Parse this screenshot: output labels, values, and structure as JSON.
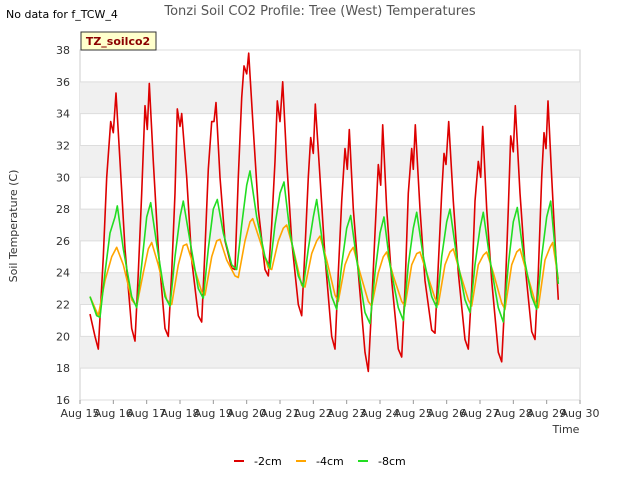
{
  "chart_data": {
    "type": "line",
    "title": "Tonzi Soil CO2 Profile: Tree (West) Temperatures",
    "no_data_note": "No data for f_TCW_4",
    "badge": "TZ_soilco2",
    "xlabel": "Time",
    "ylabel": "Soil Temperature (C)",
    "ylim": [
      16,
      38
    ],
    "yticks": [
      16,
      18,
      20,
      22,
      24,
      26,
      28,
      30,
      32,
      34,
      36,
      38
    ],
    "xlim": [
      15,
      30
    ],
    "xticks": [
      {
        "v": 15,
        "label": "Aug 15"
      },
      {
        "v": 16,
        "label": "Aug 16"
      },
      {
        "v": 17,
        "label": "Aug 17"
      },
      {
        "v": 18,
        "label": "Aug 18"
      },
      {
        "v": 19,
        "label": "Aug 19"
      },
      {
        "v": 20,
        "label": "Aug 20"
      },
      {
        "v": 21,
        "label": "Aug 21"
      },
      {
        "v": 22,
        "label": "Aug 22"
      },
      {
        "v": 23,
        "label": "Aug 23"
      },
      {
        "v": 24,
        "label": "Aug 24"
      },
      {
        "v": 25,
        "label": "Aug 25"
      },
      {
        "v": 26,
        "label": "Aug 26"
      },
      {
        "v": 27,
        "label": "Aug 27"
      },
      {
        "v": 28,
        "label": "Aug 28"
      },
      {
        "v": 29,
        "label": "Aug 29"
      },
      {
        "v": 30,
        "label": "Aug 30"
      }
    ],
    "grid": true,
    "legend_position": "bottom",
    "series": [
      {
        "name": "-2cm",
        "color": "#dd0000",
        "points": [
          [
            15.3,
            21.4
          ],
          [
            15.45,
            20.0
          ],
          [
            15.55,
            19.2
          ],
          [
            15.7,
            25.0
          ],
          [
            15.8,
            30.0
          ],
          [
            15.92,
            33.5
          ],
          [
            16.0,
            32.8
          ],
          [
            16.08,
            35.3
          ],
          [
            16.2,
            31.0
          ],
          [
            16.35,
            25.5
          ],
          [
            16.55,
            20.5
          ],
          [
            16.65,
            19.7
          ],
          [
            16.75,
            24.0
          ],
          [
            16.85,
            29.0
          ],
          [
            16.95,
            34.5
          ],
          [
            17.02,
            33.0
          ],
          [
            17.08,
            35.9
          ],
          [
            17.2,
            31.0
          ],
          [
            17.35,
            25.5
          ],
          [
            17.55,
            20.5
          ],
          [
            17.65,
            20.0
          ],
          [
            17.75,
            24.0
          ],
          [
            17.85,
            29.0
          ],
          [
            17.92,
            34.3
          ],
          [
            18.0,
            33.2
          ],
          [
            18.05,
            34.0
          ],
          [
            18.2,
            30.0
          ],
          [
            18.35,
            24.8
          ],
          [
            18.55,
            21.3
          ],
          [
            18.65,
            20.9
          ],
          [
            18.75,
            25.5
          ],
          [
            18.85,
            30.5
          ],
          [
            18.95,
            33.5
          ],
          [
            19.02,
            33.5
          ],
          [
            19.08,
            34.7
          ],
          [
            19.2,
            30.0
          ],
          [
            19.35,
            26.0
          ],
          [
            19.55,
            24.3
          ],
          [
            19.65,
            24.2
          ],
          [
            19.75,
            30.0
          ],
          [
            19.85,
            35.0
          ],
          [
            19.92,
            37.0
          ],
          [
            20.0,
            36.5
          ],
          [
            20.06,
            37.8
          ],
          [
            20.2,
            33.0
          ],
          [
            20.35,
            28.0
          ],
          [
            20.55,
            24.2
          ],
          [
            20.65,
            23.8
          ],
          [
            20.75,
            27.0
          ],
          [
            20.85,
            31.0
          ],
          [
            20.92,
            34.8
          ],
          [
            21.0,
            33.5
          ],
          [
            21.08,
            36.0
          ],
          [
            21.2,
            31.0
          ],
          [
            21.35,
            26.0
          ],
          [
            21.55,
            22.0
          ],
          [
            21.65,
            21.3
          ],
          [
            21.75,
            25.5
          ],
          [
            21.85,
            30.0
          ],
          [
            21.92,
            32.5
          ],
          [
            22.0,
            31.5
          ],
          [
            22.06,
            34.6
          ],
          [
            22.2,
            30.0
          ],
          [
            22.35,
            25.0
          ],
          [
            22.55,
            20.0
          ],
          [
            22.65,
            19.2
          ],
          [
            22.75,
            24.0
          ],
          [
            22.85,
            28.5
          ],
          [
            22.95,
            31.8
          ],
          [
            23.02,
            30.5
          ],
          [
            23.08,
            33.0
          ],
          [
            23.2,
            28.0
          ],
          [
            23.35,
            24.0
          ],
          [
            23.55,
            19.0
          ],
          [
            23.65,
            17.8
          ],
          [
            23.75,
            22.0
          ],
          [
            23.85,
            26.5
          ],
          [
            23.95,
            30.8
          ],
          [
            24.02,
            29.5
          ],
          [
            24.08,
            33.3
          ],
          [
            24.2,
            28.0
          ],
          [
            24.35,
            23.5
          ],
          [
            24.55,
            19.2
          ],
          [
            24.65,
            18.7
          ],
          [
            24.75,
            23.0
          ],
          [
            24.85,
            29.0
          ],
          [
            24.95,
            31.8
          ],
          [
            25.0,
            30.5
          ],
          [
            25.06,
            33.3
          ],
          [
            25.2,
            28.0
          ],
          [
            25.35,
            23.5
          ],
          [
            25.55,
            20.4
          ],
          [
            25.65,
            20.2
          ],
          [
            25.75,
            24.5
          ],
          [
            25.85,
            29.0
          ],
          [
            25.92,
            31.5
          ],
          [
            25.98,
            30.8
          ],
          [
            26.06,
            33.5
          ],
          [
            26.2,
            28.5
          ],
          [
            26.35,
            24.0
          ],
          [
            26.55,
            19.8
          ],
          [
            26.65,
            19.2
          ],
          [
            26.75,
            23.0
          ],
          [
            26.85,
            28.5
          ],
          [
            26.95,
            31.0
          ],
          [
            27.02,
            30.0
          ],
          [
            27.08,
            33.2
          ],
          [
            27.2,
            28.0
          ],
          [
            27.35,
            23.5
          ],
          [
            27.55,
            19.0
          ],
          [
            27.65,
            18.4
          ],
          [
            27.75,
            22.5
          ],
          [
            27.85,
            28.0
          ],
          [
            27.92,
            32.6
          ],
          [
            28.0,
            31.6
          ],
          [
            28.06,
            34.5
          ],
          [
            28.2,
            29.0
          ],
          [
            28.35,
            24.5
          ],
          [
            28.55,
            20.3
          ],
          [
            28.65,
            19.8
          ],
          [
            28.75,
            24.0
          ],
          [
            28.85,
            30.0
          ],
          [
            28.92,
            32.8
          ],
          [
            28.98,
            31.8
          ],
          [
            29.04,
            34.8
          ],
          [
            29.15,
            30.0
          ],
          [
            29.25,
            26.0
          ],
          [
            29.35,
            22.3
          ]
        ]
      },
      {
        "name": "-4cm",
        "color": "#ffa500",
        "points": [
          [
            15.3,
            22.5
          ],
          [
            15.55,
            21.3
          ],
          [
            15.75,
            23.5
          ],
          [
            15.95,
            25.0
          ],
          [
            16.1,
            25.6
          ],
          [
            16.3,
            24.5
          ],
          [
            16.55,
            22.3
          ],
          [
            16.7,
            21.9
          ],
          [
            16.9,
            24.0
          ],
          [
            17.05,
            25.5
          ],
          [
            17.15,
            25.9
          ],
          [
            17.35,
            24.5
          ],
          [
            17.6,
            22.3
          ],
          [
            17.75,
            22.0
          ],
          [
            17.95,
            24.5
          ],
          [
            18.1,
            25.7
          ],
          [
            18.2,
            25.8
          ],
          [
            18.4,
            24.5
          ],
          [
            18.65,
            22.8
          ],
          [
            18.75,
            22.6
          ],
          [
            18.95,
            25.0
          ],
          [
            19.1,
            26.0
          ],
          [
            19.2,
            26.1
          ],
          [
            19.4,
            24.8
          ],
          [
            19.65,
            23.8
          ],
          [
            19.75,
            23.7
          ],
          [
            19.95,
            26.0
          ],
          [
            20.1,
            27.2
          ],
          [
            20.18,
            27.4
          ],
          [
            20.4,
            26.0
          ],
          [
            20.65,
            24.3
          ],
          [
            20.75,
            24.2
          ],
          [
            20.95,
            26.0
          ],
          [
            21.1,
            26.8
          ],
          [
            21.2,
            27.0
          ],
          [
            21.4,
            25.5
          ],
          [
            21.65,
            23.2
          ],
          [
            21.75,
            23.1
          ],
          [
            21.95,
            25.2
          ],
          [
            22.1,
            26.0
          ],
          [
            22.2,
            26.3
          ],
          [
            22.4,
            24.8
          ],
          [
            22.65,
            22.6
          ],
          [
            22.75,
            22.2
          ],
          [
            22.95,
            24.5
          ],
          [
            23.1,
            25.3
          ],
          [
            23.2,
            25.6
          ],
          [
            23.4,
            24.0
          ],
          [
            23.65,
            22.2
          ],
          [
            23.75,
            21.9
          ],
          [
            23.95,
            24.0
          ],
          [
            24.1,
            25.0
          ],
          [
            24.2,
            25.3
          ],
          [
            24.4,
            23.8
          ],
          [
            24.65,
            22.2
          ],
          [
            24.75,
            21.9
          ],
          [
            24.95,
            24.5
          ],
          [
            25.1,
            25.2
          ],
          [
            25.2,
            25.3
          ],
          [
            25.4,
            24.0
          ],
          [
            25.65,
            22.4
          ],
          [
            25.75,
            22.0
          ],
          [
            25.95,
            24.5
          ],
          [
            26.1,
            25.3
          ],
          [
            26.2,
            25.5
          ],
          [
            26.4,
            24.0
          ],
          [
            26.65,
            22.3
          ],
          [
            26.75,
            21.9
          ],
          [
            26.95,
            24.5
          ],
          [
            27.1,
            25.1
          ],
          [
            27.2,
            25.3
          ],
          [
            27.4,
            24.0
          ],
          [
            27.65,
            22.1
          ],
          [
            27.75,
            21.7
          ],
          [
            27.95,
            24.5
          ],
          [
            28.1,
            25.3
          ],
          [
            28.2,
            25.5
          ],
          [
            28.4,
            24.0
          ],
          [
            28.65,
            22.2
          ],
          [
            28.75,
            21.8
          ],
          [
            28.95,
            24.8
          ],
          [
            29.1,
            25.6
          ],
          [
            29.18,
            25.9
          ],
          [
            29.35,
            23.6
          ]
        ]
      },
      {
        "name": "-8cm",
        "color": "#22dd22",
        "points": [
          [
            15.3,
            22.5
          ],
          [
            15.5,
            21.3
          ],
          [
            15.6,
            21.2
          ],
          [
            15.75,
            24.0
          ],
          [
            15.9,
            26.5
          ],
          [
            16.05,
            27.5
          ],
          [
            16.12,
            28.2
          ],
          [
            16.3,
            25.5
          ],
          [
            16.55,
            22.5
          ],
          [
            16.7,
            21.8
          ],
          [
            16.85,
            24.5
          ],
          [
            17.0,
            27.5
          ],
          [
            17.12,
            28.4
          ],
          [
            17.3,
            25.8
          ],
          [
            17.55,
            22.5
          ],
          [
            17.7,
            21.9
          ],
          [
            17.85,
            25.0
          ],
          [
            18.0,
            27.5
          ],
          [
            18.1,
            28.5
          ],
          [
            18.3,
            26.0
          ],
          [
            18.55,
            23.0
          ],
          [
            18.7,
            22.4
          ],
          [
            18.85,
            25.5
          ],
          [
            19.0,
            28.0
          ],
          [
            19.12,
            28.6
          ],
          [
            19.3,
            26.5
          ],
          [
            19.55,
            24.5
          ],
          [
            19.7,
            24.2
          ],
          [
            19.85,
            27.0
          ],
          [
            20.0,
            29.5
          ],
          [
            20.1,
            30.4
          ],
          [
            20.3,
            27.5
          ],
          [
            20.55,
            25.0
          ],
          [
            20.7,
            24.3
          ],
          [
            20.85,
            27.0
          ],
          [
            21.0,
            29.0
          ],
          [
            21.12,
            29.7
          ],
          [
            21.3,
            26.5
          ],
          [
            21.55,
            23.8
          ],
          [
            21.7,
            23.1
          ],
          [
            21.85,
            25.5
          ],
          [
            22.0,
            27.5
          ],
          [
            22.1,
            28.6
          ],
          [
            22.3,
            25.5
          ],
          [
            22.55,
            22.5
          ],
          [
            22.7,
            21.7
          ],
          [
            22.85,
            24.5
          ],
          [
            23.0,
            26.8
          ],
          [
            23.12,
            27.6
          ],
          [
            23.3,
            24.8
          ],
          [
            23.55,
            21.5
          ],
          [
            23.7,
            20.8
          ],
          [
            23.85,
            24.0
          ],
          [
            24.0,
            26.5
          ],
          [
            24.12,
            27.5
          ],
          [
            24.3,
            24.5
          ],
          [
            24.55,
            21.8
          ],
          [
            24.7,
            21.0
          ],
          [
            24.85,
            24.5
          ],
          [
            25.0,
            26.8
          ],
          [
            25.1,
            27.8
          ],
          [
            25.3,
            25.0
          ],
          [
            25.55,
            22.5
          ],
          [
            25.7,
            21.8
          ],
          [
            25.85,
            25.0
          ],
          [
            26.0,
            27.2
          ],
          [
            26.1,
            28.0
          ],
          [
            26.3,
            25.0
          ],
          [
            26.55,
            22.3
          ],
          [
            26.7,
            21.5
          ],
          [
            26.85,
            24.5
          ],
          [
            27.0,
            26.8
          ],
          [
            27.1,
            27.8
          ],
          [
            27.3,
            24.8
          ],
          [
            27.55,
            21.8
          ],
          [
            27.7,
            20.9
          ],
          [
            27.85,
            24.5
          ],
          [
            28.0,
            27.2
          ],
          [
            28.12,
            28.1
          ],
          [
            28.3,
            25.2
          ],
          [
            28.55,
            22.5
          ],
          [
            28.7,
            21.7
          ],
          [
            28.85,
            25.0
          ],
          [
            29.0,
            27.5
          ],
          [
            29.12,
            28.5
          ],
          [
            29.35,
            23.3
          ]
        ]
      }
    ]
  }
}
